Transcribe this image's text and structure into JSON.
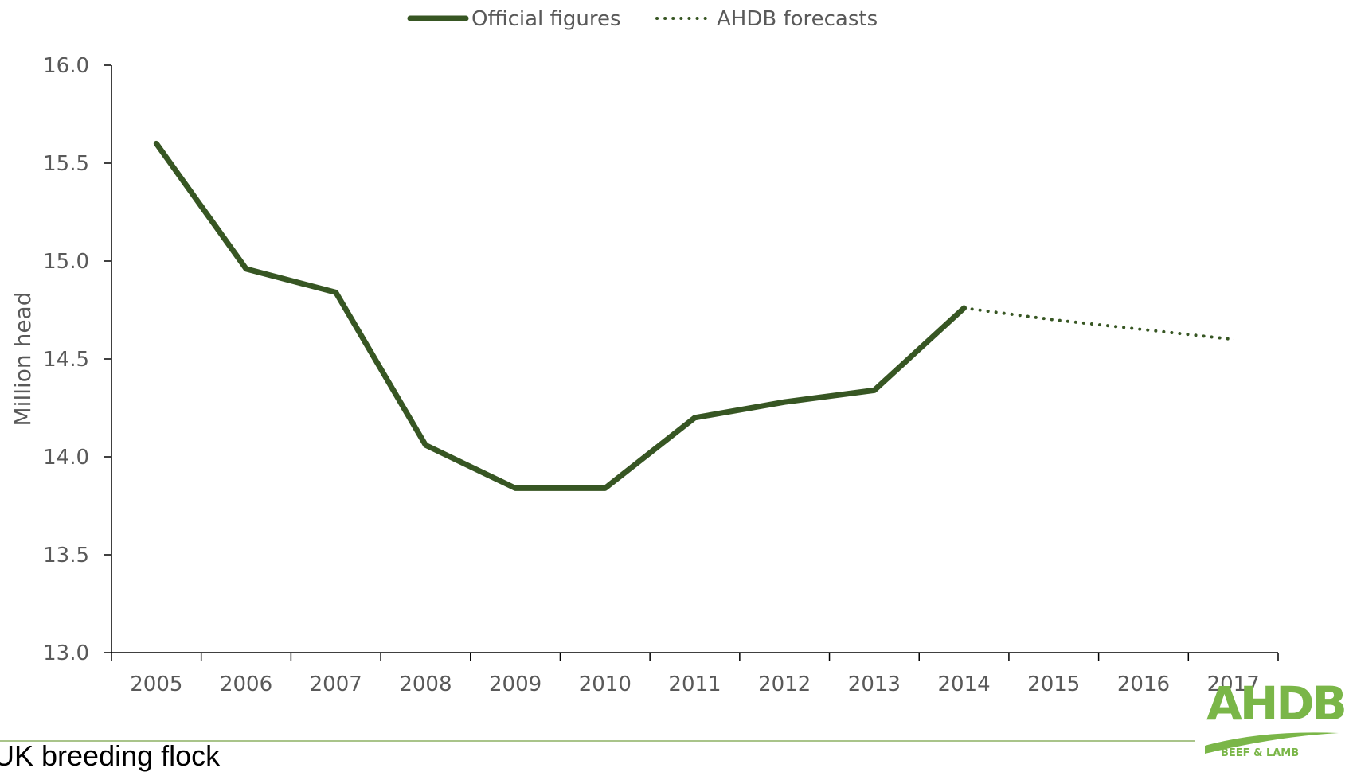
{
  "chart_data": {
    "type": "line",
    "title": "",
    "xlabel": "",
    "ylabel": "Million head",
    "categories": [
      "2005",
      "2006",
      "2007",
      "2008",
      "2009",
      "2010",
      "2011",
      "2012",
      "2013",
      "2014",
      "2015",
      "2016",
      "2017"
    ],
    "series": [
      {
        "name": "Official figures",
        "style": "solid",
        "color": "#375623",
        "values": [
          15.6,
          14.96,
          14.84,
          14.06,
          13.84,
          13.84,
          14.2,
          14.28,
          14.34,
          14.76,
          null,
          null,
          null
        ]
      },
      {
        "name": "AHDB forecasts",
        "style": "dotted",
        "color": "#375623",
        "values": [
          null,
          null,
          null,
          null,
          null,
          null,
          null,
          null,
          null,
          14.76,
          14.7,
          14.65,
          14.6
        ]
      }
    ],
    "ylim": [
      13.0,
      16.0
    ],
    "yticks": [
      "13.0",
      "13.5",
      "14.0",
      "14.5",
      "15.0",
      "15.5",
      "16.0"
    ],
    "grid": false,
    "legend_position": "top-center"
  },
  "caption": "UK breeding flock",
  "logo": {
    "text": "AHDB",
    "subtext": "BEEF & LAMB",
    "color": "#7ab648"
  }
}
